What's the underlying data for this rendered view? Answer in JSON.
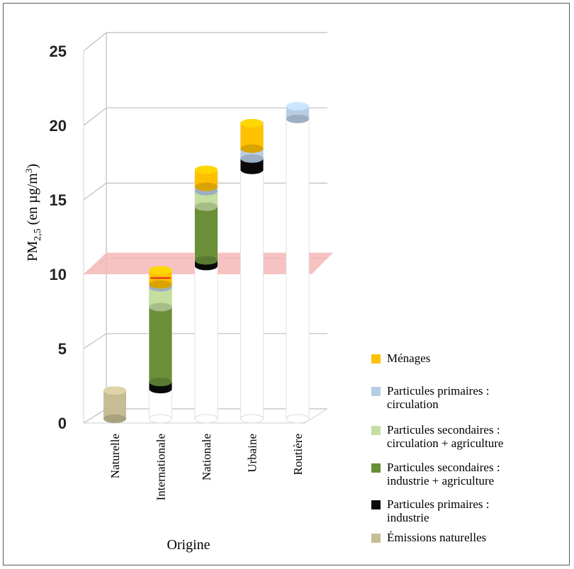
{
  "chart_data": {
    "type": "bar",
    "stacked": true,
    "three_d": true,
    "ylabel": "PM",
    "ylabel_sub": "2,5",
    "ylabel_rest": " (en µg/m",
    "ylabel_sup": "3",
    "ylabel_end": ")",
    "xlabel": "Origine",
    "ylim": [
      0,
      25
    ],
    "yticks": [
      "0",
      "5",
      "10",
      "15",
      "20",
      "25"
    ],
    "grid": true,
    "threshold": {
      "value": 10,
      "color": "#f4b7b7"
    },
    "categories": [
      "Naturelle",
      "Internationale",
      "Nationale",
      "Urbaine",
      "Routière"
    ],
    "series": [
      {
        "name": "Émissions naturelles",
        "color": "#c6bd95",
        "values": [
          2.0,
          0,
          0,
          0,
          0
        ],
        "offset": [
          0,
          0,
          0,
          0,
          0
        ]
      },
      {
        "name": "Particules primaires : industrie",
        "color": "#0a0a0a",
        "values": [
          0,
          0.5,
          0.4,
          0.8,
          0
        ],
        "offset": [
          0,
          2.1,
          10.8,
          17.6,
          0
        ]
      },
      {
        "name": "Particules secondaires : industrie + agriculture",
        "color": "#6a8f38",
        "values": [
          0,
          5.3,
          3.8,
          0,
          0
        ],
        "offset": [
          0,
          2.6,
          11.2,
          18.4,
          0
        ]
      },
      {
        "name": "Particules secondaires : circulation + agriculture",
        "color": "#c5dea0",
        "values": [
          0,
          1.4,
          1.1,
          0,
          0
        ],
        "offset": [
          0,
          7.9,
          15.0,
          18.4,
          0
        ]
      },
      {
        "name": "Particules primaires : circulation",
        "color": "#b7cde4",
        "values": [
          0,
          0.2,
          0.3,
          0.7,
          0.9
        ],
        "offset": [
          0,
          9.3,
          16.1,
          18.4,
          21.2
        ]
      },
      {
        "name": "Ménages",
        "color": "#ffc000",
        "values": [
          0,
          1.0,
          1.2,
          1.8,
          0
        ],
        "offset": [
          0,
          9.5,
          16.4,
          19.1,
          0
        ]
      }
    ],
    "legend_position": "right",
    "legend_order": [
      5,
      4,
      3,
      2,
      1,
      0
    ]
  }
}
